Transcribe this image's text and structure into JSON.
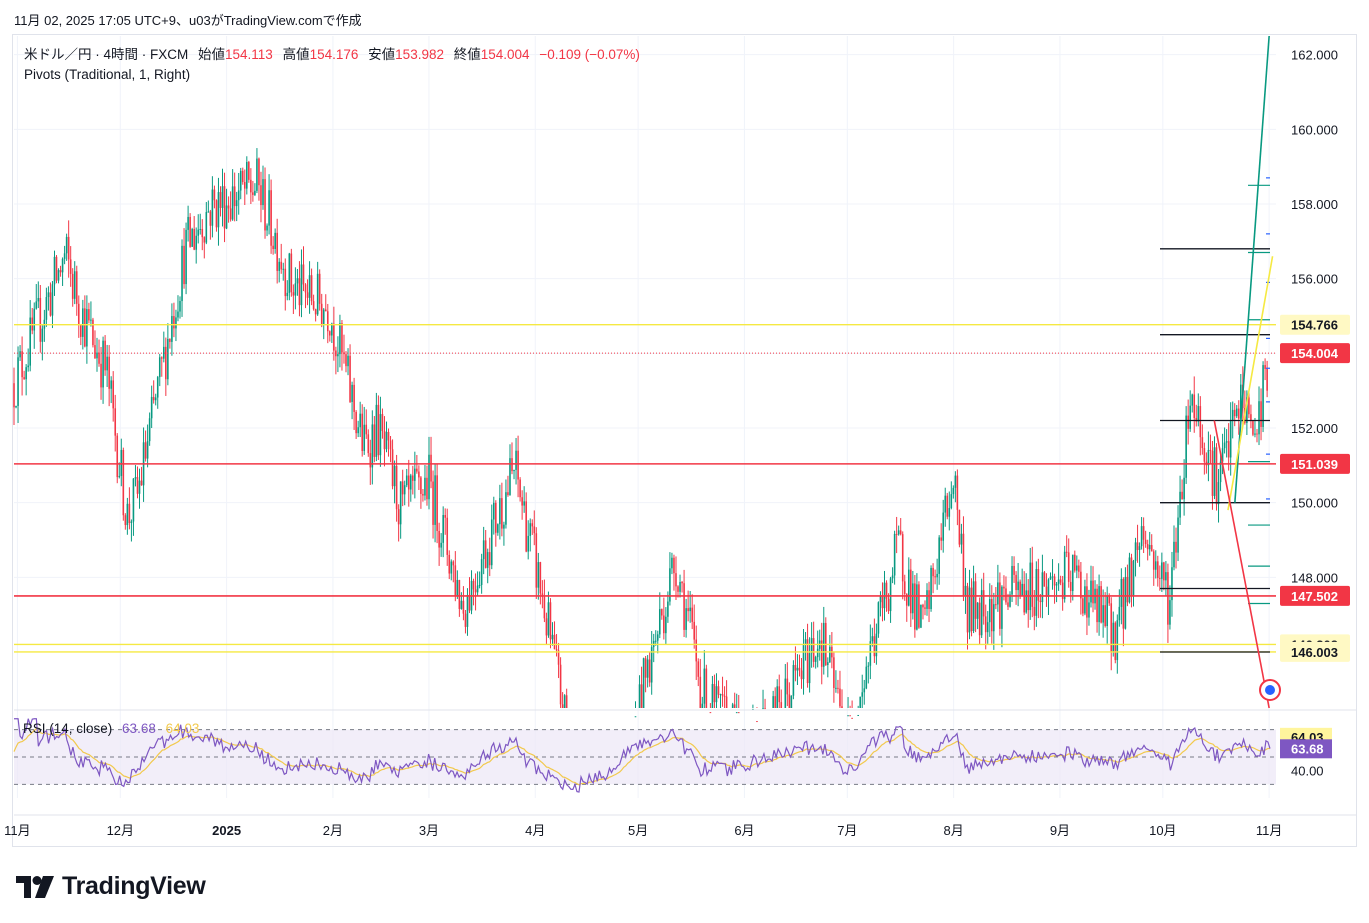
{
  "header": {
    "snapshot_text": "11月 02, 2025 17:05 UTC+9、u03がTradingView.comで作成"
  },
  "legend": {
    "symbol": "米ドル／円 · 4時間 · FXCM",
    "open_label": "始値",
    "open": "154.113",
    "high_label": "高値",
    "high": "154.176",
    "low_label": "安値",
    "low": "153.982",
    "close_label": "終値",
    "close": "154.004",
    "change": "−0.109 (−0.07%)",
    "indicator": "Pivots (Traditional, 1, Right)"
  },
  "rsi": {
    "label": "RSI (14, close)",
    "rsi_value": "63.68",
    "ma_value": "64.03"
  },
  "footer": {
    "brand": "TradingView"
  },
  "colors": {
    "up": "#089981",
    "down": "#f23645",
    "yellow": "#f5e942",
    "red_line": "#f23645",
    "green_line": "#089981",
    "rsi_line": "#7e57c2",
    "rsi_ma": "#f2c94c",
    "rsi_band": "#ede7f6"
  },
  "chart_data": {
    "type": "candlestick",
    "title": "米ドル／円 · 4時間 · FXCM",
    "y_axis": {
      "min": 144.5,
      "max": 162.5,
      "ticks": [
        "162.000",
        "160.000",
        "158.000",
        "156.000",
        "154.000",
        "152.000",
        "150.000",
        "148.000"
      ]
    },
    "x_axis": {
      "tick_labels": [
        "11月",
        "12月",
        "2025",
        "2月",
        "3月",
        "4月",
        "5月",
        "6月",
        "7月",
        "8月",
        "9月",
        "10月",
        "11月"
      ]
    },
    "price_path": [
      {
        "date": "2024-10-31",
        "price": 153.2
      },
      {
        "date": "2024-11-15",
        "price": 156.6
      },
      {
        "date": "2024-11-20",
        "price": 155.0
      },
      {
        "date": "2024-11-27",
        "price": 153.5
      },
      {
        "date": "2024-12-03",
        "price": 149.6
      },
      {
        "date": "2024-12-06",
        "price": 150.2
      },
      {
        "date": "2024-12-20",
        "price": 156.8
      },
      {
        "date": "2024-12-27",
        "price": 157.9
      },
      {
        "date": "2025-01-10",
        "price": 158.5
      },
      {
        "date": "2025-01-20",
        "price": 155.8
      },
      {
        "date": "2025-01-31",
        "price": 155.2
      },
      {
        "date": "2025-02-10",
        "price": 151.5
      },
      {
        "date": "2025-02-14",
        "price": 152.0
      },
      {
        "date": "2025-02-21",
        "price": 149.8
      },
      {
        "date": "2025-03-01",
        "price": 150.6
      },
      {
        "date": "2025-03-11",
        "price": 147.2
      },
      {
        "date": "2025-03-26",
        "price": 150.9
      },
      {
        "date": "2025-04-03",
        "price": 147.5
      },
      {
        "date": "2025-04-11",
        "price": 143.5
      },
      {
        "date": "2025-04-22",
        "price": 140.5
      },
      {
        "date": "2025-05-01",
        "price": 144.5
      },
      {
        "date": "2025-05-12",
        "price": 148.5
      },
      {
        "date": "2025-05-20",
        "price": 144.8
      },
      {
        "date": "2025-06-01",
        "price": 143.5
      },
      {
        "date": "2025-06-12",
        "price": 144.5
      },
      {
        "date": "2025-06-23",
        "price": 146.5
      },
      {
        "date": "2025-07-01",
        "price": 143.7
      },
      {
        "date": "2025-07-16",
        "price": 148.8
      },
      {
        "date": "2025-07-23",
        "price": 146.5
      },
      {
        "date": "2025-08-01",
        "price": 150.8
      },
      {
        "date": "2025-08-05",
        "price": 147.1
      },
      {
        "date": "2025-08-20",
        "price": 147.6
      },
      {
        "date": "2025-09-05",
        "price": 148.0
      },
      {
        "date": "2025-09-17",
        "price": 146.5
      },
      {
        "date": "2025-09-25",
        "price": 149.3
      },
      {
        "date": "2025-10-03",
        "price": 147.4
      },
      {
        "date": "2025-10-09",
        "price": 153.0
      },
      {
        "date": "2025-10-17",
        "price": 150.5
      },
      {
        "date": "2025-10-24",
        "price": 152.8
      },
      {
        "date": "2025-10-28",
        "price": 151.8
      },
      {
        "date": "2025-11-01",
        "price": 154.0
      }
    ],
    "horizontal_lines": [
      {
        "price": 154.766,
        "color": "#f5e942",
        "label": "154.766"
      },
      {
        "price": 151.039,
        "color": "#f23645",
        "label": "151.039"
      },
      {
        "price": 147.502,
        "color": "#f23645",
        "label": "147.502"
      },
      {
        "price": 146.203,
        "color": "#f5e942",
        "label": "146.203"
      },
      {
        "price": 146.003,
        "color": "#f5e942",
        "label": "146.003"
      }
    ],
    "last_price": {
      "price": 154.004,
      "label": "154.004"
    },
    "pivot_black_levels": [
      156.8,
      154.5,
      152.2,
      150.0,
      147.7,
      146.0
    ],
    "pivot_green_levels": [
      158.5,
      156.7,
      154.9,
      151.1,
      149.4,
      148.3,
      147.3
    ],
    "pivot_blue_levels": [
      158.7,
      157.2,
      155.9,
      154.4,
      153.6,
      152.7,
      151.3,
      150.1
    ],
    "trendlines": [
      {
        "color": "#089981",
        "from": {
          "date": "2025-10-22",
          "price": 150.0
        },
        "to": {
          "date": "2025-11-01",
          "price": 162.5
        }
      },
      {
        "color": "#f5e942",
        "from": {
          "date": "2025-10-20",
          "price": 149.8
        },
        "to": {
          "date": "2025-11-02",
          "price": 156.6
        }
      },
      {
        "color": "#f23645",
        "from": {
          "date": "2025-10-16",
          "price": 152.2
        },
        "to": {
          "date": "2025-11-01",
          "price": 144.5
        }
      }
    ],
    "rsi": {
      "range": [
        20,
        80
      ],
      "bands": [
        30,
        70
      ],
      "tick": "40.00",
      "last_value": 63.68,
      "ma_last_value": 64.03,
      "rsi_value_label": "63.68",
      "ma_value_label": "64.03"
    }
  }
}
